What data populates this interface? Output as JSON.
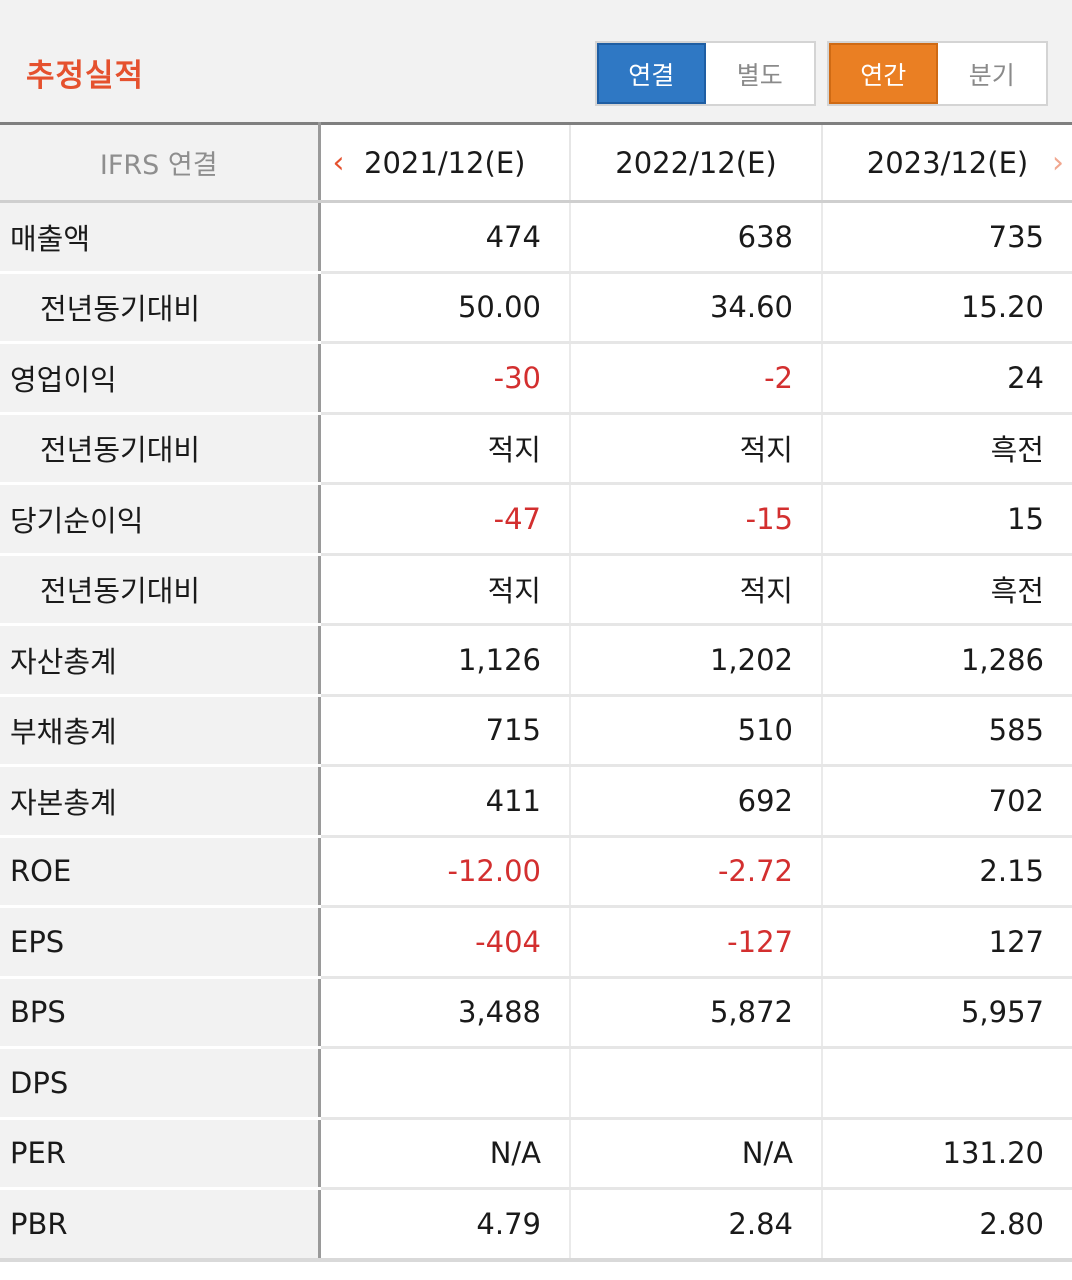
{
  "header": {
    "title": "추정실적",
    "scope_toggle": {
      "options": [
        "연결",
        "별도"
      ],
      "selected": "연결"
    },
    "period_toggle": {
      "options": [
        "연간",
        "분기"
      ],
      "selected": "연간"
    }
  },
  "table": {
    "label_header": "IFRS 연결",
    "years": [
      "2021/12(E)",
      "2022/12(E)",
      "2023/12(E)"
    ],
    "nav": {
      "prev": "‹",
      "next": "›"
    },
    "rows": [
      {
        "label": "매출액",
        "sub": false,
        "values": [
          "474",
          "638",
          "735"
        ]
      },
      {
        "label": "전년동기대비",
        "sub": true,
        "values": [
          "50.00",
          "34.60",
          "15.20"
        ]
      },
      {
        "label": "영업이익",
        "sub": false,
        "values": [
          "-30",
          "-2",
          "24"
        ]
      },
      {
        "label": "전년동기대비",
        "sub": true,
        "values": [
          "적지",
          "적지",
          "흑전"
        ]
      },
      {
        "label": "당기순이익",
        "sub": false,
        "values": [
          "-47",
          "-15",
          "15"
        ]
      },
      {
        "label": "전년동기대비",
        "sub": true,
        "values": [
          "적지",
          "적지",
          "흑전"
        ]
      },
      {
        "label": "자산총계",
        "sub": false,
        "values": [
          "1,126",
          "1,202",
          "1,286"
        ]
      },
      {
        "label": "부채총계",
        "sub": false,
        "values": [
          "715",
          "510",
          "585"
        ]
      },
      {
        "label": "자본총계",
        "sub": false,
        "values": [
          "411",
          "692",
          "702"
        ]
      },
      {
        "label": "ROE",
        "sub": false,
        "values": [
          "-12.00",
          "-2.72",
          "2.15"
        ]
      },
      {
        "label": "EPS",
        "sub": false,
        "values": [
          "-404",
          "-127",
          "127"
        ]
      },
      {
        "label": "BPS",
        "sub": false,
        "values": [
          "3,488",
          "5,872",
          "5,957"
        ]
      },
      {
        "label": "DPS",
        "sub": false,
        "values": [
          "",
          "",
          ""
        ]
      },
      {
        "label": "PER",
        "sub": false,
        "values": [
          "N/A",
          "N/A",
          "131.20"
        ]
      },
      {
        "label": "PBR",
        "sub": false,
        "values": [
          "4.79",
          "2.84",
          "2.80"
        ]
      }
    ]
  },
  "colors": {
    "title": "#e5512e",
    "scope_active": "#2f78c4",
    "period_active": "#ea7f23",
    "negative": "#d32f2f"
  }
}
